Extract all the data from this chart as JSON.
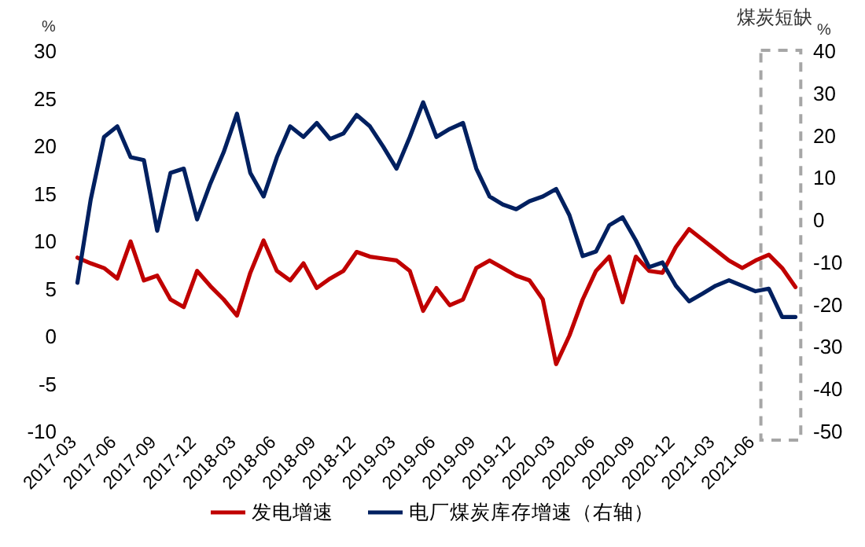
{
  "chart_data": {
    "type": "line",
    "ylabel": "%",
    "y2label": "%",
    "categories": [
      "2017-03",
      null,
      null,
      "2017-06",
      null,
      null,
      "2017-09",
      null,
      null,
      "2017-12",
      null,
      null,
      "2018-03",
      null,
      null,
      "2018-06",
      null,
      null,
      "2018-09",
      null,
      null,
      "2018-12",
      null,
      null,
      "2019-03",
      null,
      null,
      "2019-06",
      null,
      null,
      "2019-09",
      null,
      null,
      "2019-12",
      null,
      null,
      "2020-03",
      null,
      null,
      "2020-06",
      null,
      null,
      "2020-09",
      null,
      null,
      "2020-12",
      null,
      null,
      "2021-03",
      null,
      null,
      "2021-06",
      null,
      null,
      null
    ],
    "series": [
      {
        "name": "发电增速",
        "color": "#c00000",
        "values": [
          8.2,
          7.6,
          7.1,
          6.0,
          9.9,
          5.8,
          6.3,
          3.8,
          3.0,
          6.8,
          5.2,
          3.8,
          2.1,
          6.6,
          10,
          6.8,
          5.8,
          7.6,
          5.0,
          6.0,
          6.8,
          8.8,
          8.3,
          8.1,
          7.9,
          6.8,
          2.6,
          5.0,
          3.2,
          3.8,
          7.1,
          7.9,
          7.1,
          6.3,
          5.8,
          3.8,
          -3.0,
          0,
          3.8,
          6.8,
          8.3,
          3.5,
          8.3,
          6.8,
          6.6,
          9.3,
          11.2,
          10.1,
          9.0,
          7.9,
          7.1,
          7.9,
          8.5,
          7.1,
          5.1
        ]
      },
      {
        "name": "电厂煤炭库存增速（右轴）",
        "color": "#002060",
        "axis": "y2",
        "values": [
          -15,
          4.7,
          19.5,
          22,
          14.7,
          14,
          -2.7,
          11,
          12,
          0,
          8.5,
          15.9,
          25,
          11,
          5.4,
          14.7,
          22,
          19.5,
          22.8,
          19,
          20.3,
          24.7,
          22,
          17.2,
          12,
          19.5,
          27.7,
          19.5,
          21.4,
          22.8,
          12,
          5.4,
          3.5,
          2.4,
          4.3,
          5.4,
          7.2,
          1,
          -8.7,
          -7.6,
          -1.4,
          0.5,
          -5,
          -11.3,
          -10.2,
          -15.7,
          -19.4,
          -17.6,
          -15.7,
          -14.4,
          -15.7,
          -17,
          -16.4,
          -23.1,
          -23.1
        ]
      }
    ],
    "ylim": [
      -10,
      30
    ],
    "yticks": [
      -10,
      -5,
      0,
      5,
      10,
      15,
      20,
      25,
      30
    ],
    "y2lim": [
      -50,
      40
    ],
    "y2ticks": [
      -50,
      -40,
      -30,
      -20,
      -10,
      0,
      10,
      20,
      30,
      40
    ],
    "annotations": [
      "煤炭短缺"
    ],
    "grid": false,
    "legend": "bottom",
    "marker": "none",
    "line_style": "solid"
  }
}
